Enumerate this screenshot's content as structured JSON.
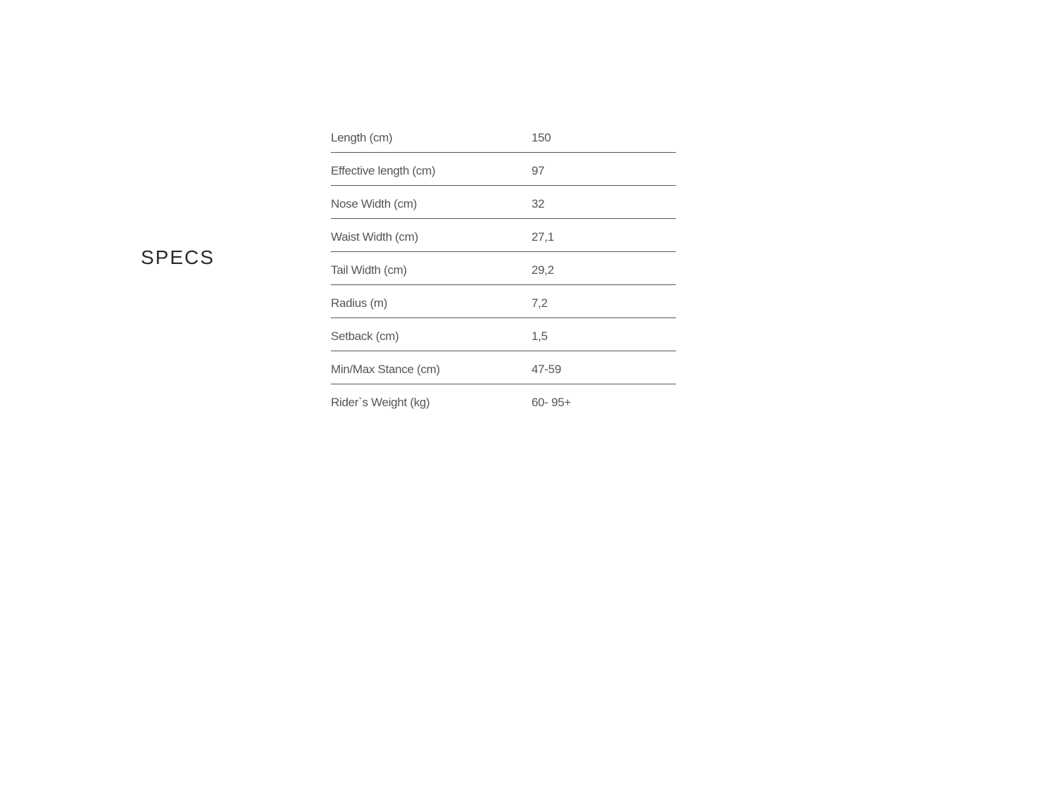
{
  "title": "SPECS",
  "specs": {
    "rows": [
      {
        "label": "Length (cm)",
        "value": "150"
      },
      {
        "label": "Effective length (cm)",
        "value": "97"
      },
      {
        "label": "Nose Width (cm)",
        "value": "32"
      },
      {
        "label": "Waist Width (cm)",
        "value": "27,1"
      },
      {
        "label": "Tail Width (cm)",
        "value": "29,2"
      },
      {
        "label": "Radius (m)",
        "value": "7,2"
      },
      {
        "label": "Setback (cm)",
        "value": "1,5"
      },
      {
        "label": "Min/Max Stance (cm)",
        "value": "47-59"
      },
      {
        "label": "Rider`s Weight (kg)",
        "value": "60- 95+"
      }
    ],
    "border_color": "#555555",
    "text_color": "#555555",
    "title_color": "#2a2a2a",
    "background_color": "#ffffff",
    "label_fontsize": 17,
    "title_fontsize": 28
  }
}
